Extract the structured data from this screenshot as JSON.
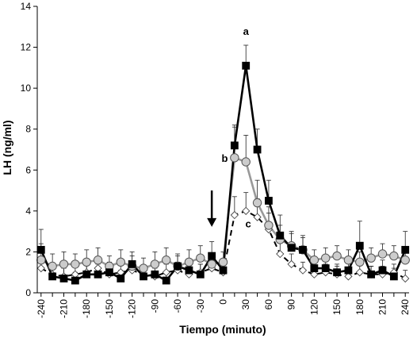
{
  "chart_data": {
    "type": "line",
    "title": "",
    "xlabel": "Tiempo (minuto)",
    "ylabel": "LH (ng/ml)",
    "xlim": [
      -245,
      245
    ],
    "ylim": [
      0,
      14
    ],
    "yticks": [
      0,
      2,
      4,
      6,
      8,
      10,
      12,
      14
    ],
    "xticks": [
      -240,
      -210,
      -180,
      -150,
      -120,
      -90,
      -60,
      -30,
      0,
      30,
      60,
      90,
      120,
      150,
      180,
      210,
      240
    ],
    "grid": false,
    "legend": "none",
    "series": [
      {
        "marker": "square",
        "line_style": "solid",
        "color": "#000000",
        "marker_fill": "#000000",
        "points": [
          {
            "x": -240,
            "y": 2.1,
            "err": 1.0
          },
          {
            "x": -225,
            "y": 0.8,
            "err": 0.6
          },
          {
            "x": -210,
            "y": 0.7,
            "err": 0.5
          },
          {
            "x": -195,
            "y": 0.6,
            "err": 0.4
          },
          {
            "x": -180,
            "y": 0.9,
            "err": 0.5
          },
          {
            "x": -165,
            "y": 0.9,
            "err": 0.5
          },
          {
            "x": -150,
            "y": 1.0,
            "err": 0.5
          },
          {
            "x": -135,
            "y": 0.7,
            "err": 0.4
          },
          {
            "x": -120,
            "y": 1.4,
            "err": 0.6
          },
          {
            "x": -105,
            "y": 0.8,
            "err": 0.5
          },
          {
            "x": -90,
            "y": 0.9,
            "err": 0.5
          },
          {
            "x": -75,
            "y": 0.6,
            "err": 0.4
          },
          {
            "x": -60,
            "y": 1.3,
            "err": 0.6
          },
          {
            "x": -45,
            "y": 1.1,
            "err": 0.5
          },
          {
            "x": -30,
            "y": 0.9,
            "err": 0.5
          },
          {
            "x": -15,
            "y": 1.8,
            "err": 0.7
          },
          {
            "x": 0,
            "y": 1.1,
            "err": 0.5
          },
          {
            "x": 15,
            "y": 7.2,
            "err": 1.0
          },
          {
            "x": 30,
            "y": 11.1,
            "err": 1.0
          },
          {
            "x": 45,
            "y": 7.0,
            "err": 1.0
          },
          {
            "x": 60,
            "y": 4.5,
            "err": 1.0
          },
          {
            "x": 75,
            "y": 2.8,
            "err": 1.0
          },
          {
            "x": 90,
            "y": 2.2,
            "err": 0.8
          },
          {
            "x": 105,
            "y": 2.1,
            "err": 0.7
          },
          {
            "x": 120,
            "y": 1.2,
            "err": 0.5
          },
          {
            "x": 135,
            "y": 1.2,
            "err": 0.5
          },
          {
            "x": 150,
            "y": 1.0,
            "err": 0.4
          },
          {
            "x": 165,
            "y": 1.1,
            "err": 0.5
          },
          {
            "x": 180,
            "y": 2.3,
            "err": 1.2
          },
          {
            "x": 195,
            "y": 0.9,
            "err": 0.4
          },
          {
            "x": 210,
            "y": 1.1,
            "err": 0.5
          },
          {
            "x": 225,
            "y": 0.8,
            "err": 0.4
          },
          {
            "x": 240,
            "y": 2.1,
            "err": 0.9
          }
        ]
      },
      {
        "marker": "circle",
        "line_style": "solid",
        "color": "#999999",
        "marker_fill": "#cccccc",
        "points": [
          {
            "x": -240,
            "y": 1.6,
            "err": 0.8
          },
          {
            "x": -225,
            "y": 1.3,
            "err": 0.6
          },
          {
            "x": -210,
            "y": 1.4,
            "err": 0.6
          },
          {
            "x": -195,
            "y": 1.4,
            "err": 0.5
          },
          {
            "x": -180,
            "y": 1.5,
            "err": 0.6
          },
          {
            "x": -165,
            "y": 1.6,
            "err": 0.6
          },
          {
            "x": -150,
            "y": 1.3,
            "err": 0.5
          },
          {
            "x": -135,
            "y": 1.5,
            "err": 0.6
          },
          {
            "x": -120,
            "y": 1.3,
            "err": 0.5
          },
          {
            "x": -105,
            "y": 1.2,
            "err": 0.5
          },
          {
            "x": -90,
            "y": 1.4,
            "err": 0.6
          },
          {
            "x": -75,
            "y": 1.6,
            "err": 0.6
          },
          {
            "x": -60,
            "y": 1.3,
            "err": 0.5
          },
          {
            "x": -45,
            "y": 1.5,
            "err": 0.6
          },
          {
            "x": -30,
            "y": 1.7,
            "err": 0.6
          },
          {
            "x": -15,
            "y": 1.4,
            "err": 0.5
          },
          {
            "x": 0,
            "y": 1.5,
            "err": 0.5
          },
          {
            "x": 15,
            "y": 6.6,
            "err": 1.5
          },
          {
            "x": 30,
            "y": 6.4,
            "err": 1.3
          },
          {
            "x": 45,
            "y": 4.4,
            "err": 1.1
          },
          {
            "x": 60,
            "y": 3.3,
            "err": 0.9
          },
          {
            "x": 75,
            "y": 2.6,
            "err": 0.7
          },
          {
            "x": 90,
            "y": 2.3,
            "err": 0.6
          },
          {
            "x": 105,
            "y": 2.1,
            "err": 0.6
          },
          {
            "x": 120,
            "y": 1.6,
            "err": 0.5
          },
          {
            "x": 135,
            "y": 1.7,
            "err": 0.5
          },
          {
            "x": 150,
            "y": 1.8,
            "err": 0.5
          },
          {
            "x": 165,
            "y": 1.6,
            "err": 0.5
          },
          {
            "x": 180,
            "y": 1.5,
            "err": 0.5
          },
          {
            "x": 195,
            "y": 1.7,
            "err": 0.5
          },
          {
            "x": 210,
            "y": 1.9,
            "err": 0.5
          },
          {
            "x": 225,
            "y": 1.8,
            "err": 0.5
          },
          {
            "x": 240,
            "y": 1.6,
            "err": 0.5
          }
        ]
      },
      {
        "marker": "diamond",
        "line_style": "dashed",
        "color": "#000000",
        "marker_fill": "#ffffff",
        "points": [
          {
            "x": -240,
            "y": 1.2,
            "err": 0.5
          },
          {
            "x": -225,
            "y": 0.9,
            "err": 0.4
          },
          {
            "x": -210,
            "y": 0.8,
            "err": 0.4
          },
          {
            "x": -195,
            "y": 0.9,
            "err": 0.4
          },
          {
            "x": -180,
            "y": 1.0,
            "err": 0.4
          },
          {
            "x": -165,
            "y": 1.2,
            "err": 0.4
          },
          {
            "x": -150,
            "y": 0.9,
            "err": 0.4
          },
          {
            "x": -135,
            "y": 1.0,
            "err": 0.4
          },
          {
            "x": -120,
            "y": 1.1,
            "err": 0.4
          },
          {
            "x": -105,
            "y": 0.9,
            "err": 0.4
          },
          {
            "x": -90,
            "y": 0.8,
            "err": 0.4
          },
          {
            "x": -75,
            "y": 1.0,
            "err": 0.4
          },
          {
            "x": -60,
            "y": 1.1,
            "err": 0.4
          },
          {
            "x": -45,
            "y": 0.9,
            "err": 0.4
          },
          {
            "x": -30,
            "y": 1.0,
            "err": 0.4
          },
          {
            "x": -15,
            "y": 1.2,
            "err": 0.4
          },
          {
            "x": 0,
            "y": 1.0,
            "err": 0.4
          },
          {
            "x": 15,
            "y": 3.8,
            "err": 0.9
          },
          {
            "x": 30,
            "y": 4.0,
            "err": 0.9
          },
          {
            "x": 45,
            "y": 3.7,
            "err": 0.9
          },
          {
            "x": 60,
            "y": 3.1,
            "err": 0.8
          },
          {
            "x": 75,
            "y": 1.9,
            "err": 0.6
          },
          {
            "x": 90,
            "y": 1.4,
            "err": 0.5
          },
          {
            "x": 105,
            "y": 1.1,
            "err": 0.4
          },
          {
            "x": 120,
            "y": 0.9,
            "err": 0.4
          },
          {
            "x": 135,
            "y": 1.0,
            "err": 0.4
          },
          {
            "x": 150,
            "y": 0.9,
            "err": 0.4
          },
          {
            "x": 165,
            "y": 0.8,
            "err": 0.4
          },
          {
            "x": 180,
            "y": 1.0,
            "err": 0.4
          },
          {
            "x": 195,
            "y": 0.9,
            "err": 0.4
          },
          {
            "x": 210,
            "y": 0.9,
            "err": 0.4
          },
          {
            "x": 225,
            "y": 1.0,
            "err": 0.4
          },
          {
            "x": 240,
            "y": 0.7,
            "err": 0.4
          }
        ]
      }
    ],
    "annotations": [
      {
        "text": "a",
        "x": 30,
        "y": 12.6
      },
      {
        "text": "b",
        "x": 2,
        "y": 6.4
      },
      {
        "text": "c",
        "x": 33,
        "y": 3.2
      }
    ],
    "arrow": {
      "x": -15,
      "y_from": 5.0,
      "y_to": 3.3
    }
  }
}
